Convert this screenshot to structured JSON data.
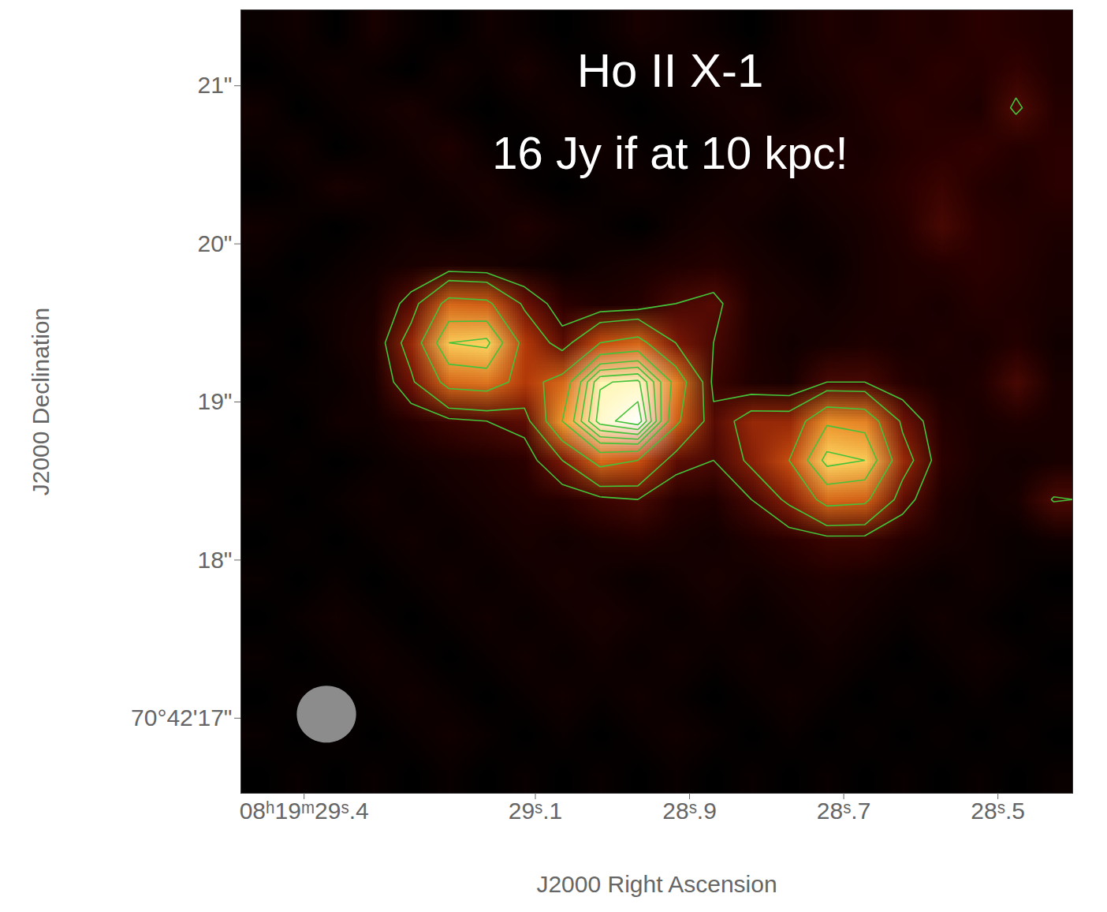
{
  "chart_data": {
    "type": "heatmap",
    "title": "Ho II X-1",
    "annotations": [
      "16 Jy if at 10 kpc!"
    ],
    "x_label": "J2000 Right Ascension",
    "y_label": "J2000 Declination",
    "xlim": [
      29.482,
      28.403
    ],
    "ylim": [
      16.525,
      21.48
    ],
    "xticks": [
      {
        "value": 29.4,
        "label": "08ʰ19ᵐ29ˢ.4"
      },
      {
        "value": 29.1,
        "label": "29ˢ.1"
      },
      {
        "value": 28.9,
        "label": "28ˢ.9"
      },
      {
        "value": 28.7,
        "label": "28ˢ.7"
      },
      {
        "value": 28.5,
        "label": "28ˢ.5"
      }
    ],
    "yticks": [
      {
        "value": 17,
        "label": "70°42'17\""
      },
      {
        "value": 18,
        "label": "18\""
      },
      {
        "value": 19,
        "label": "19\""
      },
      {
        "value": 20,
        "label": "20\""
      },
      {
        "value": 21,
        "label": "21\""
      }
    ],
    "cells": [
      [
        3,
        4,
        2,
        5,
        3,
        2,
        4,
        3,
        2,
        3,
        5,
        4,
        3,
        2,
        4,
        6,
        5,
        7,
        6,
        8,
        7,
        6
      ],
      [
        2,
        3,
        4,
        3,
        2,
        4,
        3,
        5,
        3,
        2,
        3,
        4,
        5,
        3,
        4,
        5,
        7,
        6,
        8,
        7,
        9,
        6
      ],
      [
        4,
        2,
        3,
        4,
        5,
        3,
        2,
        3,
        4,
        3,
        2,
        3,
        4,
        5,
        3,
        4,
        6,
        8,
        7,
        6,
        13,
        7
      ],
      [
        3,
        4,
        2,
        3,
        4,
        6,
        3,
        2,
        3,
        4,
        3,
        2,
        3,
        4,
        5,
        6,
        5,
        7,
        8,
        9,
        7,
        8
      ],
      [
        2,
        3,
        5,
        4,
        3,
        4,
        5,
        3,
        2,
        3,
        4,
        3,
        4,
        5,
        4,
        5,
        6,
        8,
        10,
        7,
        6,
        8
      ],
      [
        4,
        3,
        2,
        3,
        4,
        3,
        4,
        6,
        4,
        3,
        2,
        4,
        5,
        4,
        3,
        4,
        5,
        7,
        12,
        8,
        7,
        6
      ],
      [
        3,
        2,
        3,
        4,
        5,
        6,
        5,
        4,
        3,
        4,
        5,
        6,
        7,
        5,
        4,
        3,
        5,
        6,
        7,
        8,
        7,
        5
      ],
      [
        2,
        3,
        4,
        5,
        15,
        40,
        38,
        18,
        8,
        6,
        7,
        12,
        14,
        6,
        5,
        4,
        5,
        6,
        5,
        7,
        6,
        5
      ],
      [
        3,
        2,
        4,
        6,
        25,
        62,
        65,
        30,
        15,
        35,
        40,
        20,
        12,
        6,
        4,
        5,
        6,
        5,
        6,
        5,
        7,
        4
      ],
      [
        2,
        3,
        3,
        5,
        18,
        40,
        42,
        30,
        40,
        85,
        88,
        45,
        10,
        6,
        5,
        12,
        12,
        7,
        5,
        6,
        12,
        5
      ],
      [
        3,
        2,
        4,
        4,
        7,
        10,
        12,
        15,
        50,
        90,
        100,
        38,
        14,
        25,
        25,
        48,
        45,
        18,
        7,
        5,
        6,
        5
      ],
      [
        2,
        3,
        2,
        3,
        4,
        5,
        6,
        8,
        20,
        40,
        35,
        15,
        12,
        22,
        35,
        66,
        62,
        25,
        8,
        5,
        4,
        5
      ],
      [
        3,
        2,
        3,
        4,
        3,
        4,
        5,
        6,
        7,
        10,
        12,
        7,
        6,
        12,
        22,
        40,
        38,
        15,
        6,
        4,
        5,
        12.5
      ],
      [
        2,
        3,
        2,
        3,
        4,
        3,
        4,
        5,
        4,
        5,
        6,
        5,
        4,
        6,
        8,
        10,
        10,
        7,
        5,
        4,
        3,
        4
      ],
      [
        3,
        2,
        3,
        2,
        3,
        4,
        3,
        4,
        5,
        4,
        3,
        4,
        5,
        4,
        5,
        6,
        5,
        4,
        3,
        4,
        3,
        2
      ],
      [
        2,
        3,
        4,
        3,
        2,
        3,
        4,
        3,
        4,
        5,
        4,
        3,
        4,
        3,
        4,
        5,
        4,
        3,
        4,
        3,
        2,
        3
      ],
      [
        3,
        2,
        3,
        4,
        3,
        2,
        3,
        4,
        3,
        4,
        3,
        4,
        3,
        4,
        3,
        4,
        3,
        2,
        3,
        4,
        3,
        2
      ],
      [
        2,
        3,
        2,
        3,
        4,
        3,
        2,
        3,
        4,
        3,
        4,
        3,
        2,
        3,
        4,
        3,
        2,
        3,
        2,
        3,
        2,
        3
      ],
      [
        3,
        2,
        3,
        2,
        3,
        4,
        3,
        2,
        3,
        2,
        3,
        4,
        3,
        2,
        3,
        2,
        3,
        2,
        3,
        2,
        3,
        2
      ],
      [
        2,
        3,
        2,
        3,
        2,
        3,
        2,
        3,
        2,
        3,
        2,
        3,
        2,
        3,
        2,
        3,
        2,
        3,
        2,
        3,
        2,
        3
      ]
    ],
    "contour_levels": [
      12,
      20,
      35,
      50,
      62,
      70,
      78,
      86,
      94
    ],
    "beam": {
      "x": 29.371,
      "y": 17.025,
      "width": 0.077,
      "height": 0.36
    }
  }
}
